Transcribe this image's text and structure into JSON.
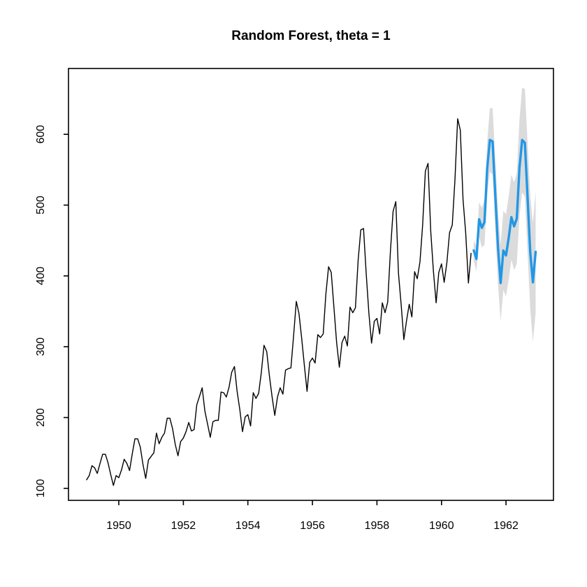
{
  "title": "Random Forest, theta = 1",
  "colors": {
    "background": "#ffffff",
    "observed_line": "#000000",
    "forecast_line": "#2297E6",
    "prediction_band": "#DBDBDB",
    "axis": "#000000",
    "text": "#000000"
  },
  "chart_data": {
    "type": "line",
    "title": "Random Forest, theta = 1",
    "xlabel": "",
    "ylabel": "",
    "grid": false,
    "legend": null,
    "x_ticks": [
      1950,
      1952,
      1954,
      1956,
      1958,
      1960,
      1962
    ],
    "y_ticks": [
      100,
      200,
      300,
      400,
      500,
      600
    ],
    "xlim": [
      1948.44,
      1963.47
    ],
    "ylim": [
      83,
      693
    ],
    "series": [
      {
        "name": "observed",
        "role": "history",
        "color": "#000000",
        "start_year": 1949,
        "frequency": 12,
        "values": [
          112,
          118,
          132,
          129,
          121,
          135,
          148,
          148,
          136,
          119,
          104,
          118,
          115,
          126,
          141,
          135,
          125,
          149,
          170,
          170,
          158,
          133,
          114,
          140,
          145,
          150,
          178,
          163,
          172,
          178,
          199,
          199,
          184,
          162,
          146,
          166,
          171,
          180,
          193,
          181,
          183,
          218,
          230,
          242,
          209,
          191,
          172,
          194,
          196,
          196,
          236,
          235,
          229,
          243,
          264,
          272,
          237,
          211,
          180,
          201,
          204,
          188,
          235,
          227,
          234,
          264,
          302,
          293,
          259,
          229,
          203,
          229,
          242,
          233,
          267,
          269,
          270,
          315,
          364,
          347,
          312,
          274,
          237,
          278,
          284,
          277,
          317,
          313,
          318,
          374,
          413,
          405,
          355,
          306,
          271,
          306,
          315,
          301,
          356,
          348,
          355,
          422,
          465,
          467,
          404,
          347,
          305,
          336,
          340,
          318,
          362,
          348,
          363,
          435,
          491,
          505,
          404,
          359,
          310,
          337,
          360,
          342,
          406,
          396,
          420,
          472,
          548,
          559,
          463,
          407,
          362,
          405,
          417,
          391,
          419,
          461,
          472,
          535,
          622,
          606,
          508,
          461,
          390,
          432
        ]
      },
      {
        "name": "forecast",
        "role": "forecast",
        "color": "#2297E6",
        "start_year": 1961,
        "frequency": 12,
        "values": [
          436,
          424,
          480,
          468,
          476,
          552,
          592,
          590,
          516,
          441,
          390,
          436,
          429,
          454,
          483,
          470,
          481,
          553,
          592,
          588,
          512,
          433,
          391,
          434
        ]
      },
      {
        "name": "interval_half_width",
        "role": "band",
        "color": "#DBDBDB",
        "values": [
          14,
          18,
          24,
          28,
          32,
          38,
          45,
          47,
          50,
          52,
          54,
          56,
          58,
          59,
          60,
          62,
          64,
          68,
          74,
          76,
          78,
          80,
          84,
          86
        ]
      }
    ]
  }
}
